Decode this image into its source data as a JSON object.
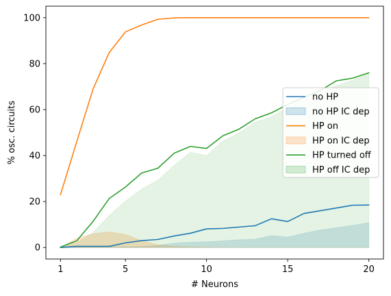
{
  "chart_data": {
    "type": "line",
    "xlabel": "# Neurons",
    "ylabel": "% osc. circuits",
    "xlim": [
      0.1,
      20.9
    ],
    "ylim": [
      -5,
      105
    ],
    "xticks": [
      1,
      5,
      10,
      15,
      20
    ],
    "yticks": [
      0,
      20,
      40,
      60,
      80,
      100
    ],
    "x": [
      1,
      2,
      3,
      4,
      5,
      6,
      7,
      8,
      9,
      10,
      11,
      12,
      13,
      14,
      15,
      16,
      17,
      18,
      19,
      20
    ],
    "lines": [
      {
        "name": "no HP",
        "color": "#1f77b4",
        "values": [
          0,
          0.5,
          0.5,
          0.5,
          2,
          3,
          3.5,
          5,
          6.2,
          8.1,
          8.3,
          8.9,
          9.5,
          12.5,
          11.3,
          14.8,
          16,
          17.2,
          18.4,
          18.5
        ]
      },
      {
        "name": "HP on",
        "color": "#ff7f0e",
        "values": [
          23,
          46,
          68.8,
          84.8,
          93.8,
          96.8,
          99.3,
          99.9,
          100,
          100,
          100,
          100,
          100,
          100,
          100,
          100,
          100,
          100,
          100,
          100
        ]
      },
      {
        "name": "HP turned off",
        "color": "#2ca02c",
        "values": [
          0.2,
          2.9,
          11.3,
          21.3,
          26.3,
          32.4,
          34.5,
          41,
          44,
          43.1,
          48.6,
          51.5,
          56,
          58.6,
          62.2,
          65.3,
          68.3,
          72.5,
          73.7,
          76
        ]
      }
    ],
    "areas": [
      {
        "name": "no HP IC dep",
        "color": "#1f77b4",
        "opacity": 0.18,
        "values": [
          0,
          0.3,
          0.3,
          0.3,
          0.3,
          0.4,
          0.9,
          1.9,
          2.3,
          2.5,
          2.9,
          3.4,
          3.6,
          5.2,
          4.5,
          6.2,
          7.6,
          8.6,
          9.6,
          10.8
        ]
      },
      {
        "name": "HP on IC dep",
        "color": "#ff7f0e",
        "opacity": 0.22,
        "values": [
          0,
          4,
          6,
          6.8,
          5.7,
          3,
          1.2,
          0.5,
          0.2,
          0.1,
          0,
          0,
          0,
          0,
          0,
          0,
          0,
          0,
          0,
          0
        ]
      },
      {
        "name": "HP off IC dep",
        "color": "#2ca02c",
        "opacity": 0.13,
        "values": [
          0,
          2,
          6.5,
          14,
          20.2,
          25.5,
          29.3,
          35.7,
          41.5,
          40,
          46.3,
          49.8,
          54.6,
          56.9,
          60.9,
          64,
          67.2,
          70.5,
          72.8,
          75.8
        ]
      }
    ],
    "legend": {
      "position": "center-right",
      "entries": [
        {
          "label": "no HP",
          "kind": "line",
          "color": "#1f77b4"
        },
        {
          "label": "no HP IC dep",
          "kind": "patch",
          "color": "#1f77b4"
        },
        {
          "label": "HP on",
          "kind": "line",
          "color": "#ff7f0e"
        },
        {
          "label": "HP on IC dep",
          "kind": "patch",
          "color": "#ff7f0e"
        },
        {
          "label": "HP turned off",
          "kind": "line",
          "color": "#2ca02c"
        },
        {
          "label": "HP off IC dep",
          "kind": "patch",
          "color": "#2ca02c"
        }
      ]
    },
    "grid": false
  }
}
